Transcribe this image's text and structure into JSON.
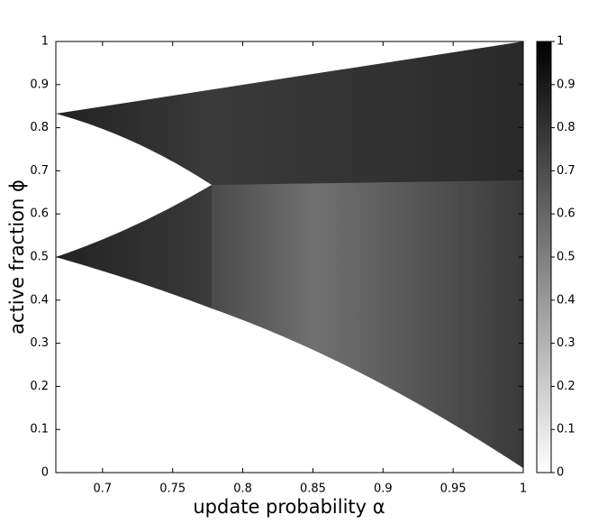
{
  "chart_data": {
    "type": "heatmap",
    "x_label": "update probability α",
    "y_label": "active fraction ϕ",
    "xlim": [
      0.6667,
      1
    ],
    "xticks": [
      0.7,
      0.75,
      0.8,
      0.85,
      0.9,
      0.95,
      1
    ],
    "ylim": [
      0,
      1
    ],
    "yticks": [
      0,
      0.1,
      0.2,
      0.3,
      0.4,
      0.5,
      0.6,
      0.7,
      0.8,
      0.9,
      1
    ],
    "colorbar": {
      "lim": [
        0,
        1
      ],
      "ticks": [
        0,
        0.1,
        0.2,
        0.3,
        0.4,
        0.5,
        0.6,
        0.7,
        0.8,
        0.9,
        1
      ]
    }
  }
}
